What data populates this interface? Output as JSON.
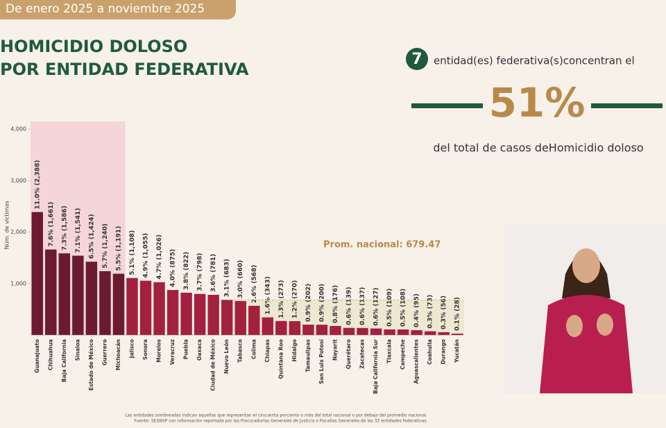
{
  "header": {
    "period": "De enero 2025 a noviembre 2025",
    "title_line1": "HOMICIDIO DOLOSO",
    "title_line2": "POR ENTIDAD FEDERATIVA"
  },
  "callout": {
    "count": "7",
    "lead": "entidad(es) federativa(s)concentran el",
    "share": "51%",
    "tail": "del total de casos deHomicidio doloso"
  },
  "notes": [
    "Las entidades sombreadas indican aquellas que representan el cincuenta porciento o más del total nacional o por debajo del promedio nacional.",
    "Fuente: SESNSP con información reportada por las Procuradurías Generales de Justicia o Fiscalías Generales de las 32 entidades federativas."
  ],
  "chart_data": {
    "type": "bar",
    "y_label": "Núm. de víctimas",
    "categories": [
      "Guanajuato",
      "Chihuahua",
      "Baja California",
      "Sinaloa",
      "Estado de México",
      "Guerrero",
      "Michoacán",
      "Jalisco",
      "Sonora",
      "Morelos",
      "Veracruz",
      "Puebla",
      "Oaxaca",
      "Ciudad de México",
      "Nuevo León",
      "Tabasco",
      "Colima",
      "Chiapas",
      "Quintana Roo",
      "Hidalgo",
      "Tamaulipas",
      "San Luis Potosí",
      "Nayarit",
      "Querétaro",
      "Zacatecas",
      "Baja California Sur",
      "Tlaxcala",
      "Campeche",
      "Aguascalientes",
      "Coahuila",
      "Durango",
      "Yucatán"
    ],
    "values": [
      2388,
      1661,
      1586,
      1541,
      1424,
      1240,
      1191,
      1108,
      1055,
      1026,
      875,
      822,
      798,
      781,
      683,
      660,
      568,
      343,
      273,
      270,
      202,
      200,
      176,
      139,
      137,
      127,
      109,
      108,
      95,
      73,
      56,
      28
    ],
    "value_labels": [
      "11.0% (2,388)",
      "7.6% (1,661)",
      "7.3% (1,586)",
      "7.1% (1,541)",
      "6.5% (1,424)",
      "5.7% (1,240)",
      "5.5% (1,191)",
      "5.1% (1,108)",
      "4.9% (1,055)",
      "4.7% (1,026)",
      "4.0% (875)",
      "3.8% (822)",
      "3.7% (798)",
      "3.6% (781)",
      "3.1% (683)",
      "3.0% (660)",
      "2.6% (568)",
      "1.6% (343)",
      "1.3% (273)",
      "1.2% (270)",
      "0.9% (202)",
      "0.9% (200)",
      "0.8% (176)",
      "0.6% (139)",
      "0.6% (137)",
      "0.6% (127)",
      "0.5% (109)",
      "0.5% (108)",
      "0.4% (95)",
      "0.3% (73)",
      "0.3% (56)",
      "0.1% (28)"
    ],
    "colors": [
      "#6b1a31",
      "#6b1a31",
      "#6b1a31",
      "#6b1a31",
      "#6b1a31",
      "#6b1a31",
      "#6b1a31",
      "#a3213f",
      "#a3213f",
      "#a3213f",
      "#a3213f",
      "#a3213f",
      "#a3213f",
      "#a3213f",
      "#a3213f",
      "#a3213f",
      "#a3213f",
      "#a3213f",
      "#a3213f",
      "#a3213f",
      "#a3213f",
      "#a3213f",
      "#a3213f",
      "#a3213f",
      "#a3213f",
      "#a3213f",
      "#a3213f",
      "#a3213f",
      "#a3213f",
      "#a3213f",
      "#a3213f",
      "#a3213f"
    ],
    "average": {
      "value": 679.47,
      "label": "Prom. nacional: 679.47"
    },
    "ylim": [
      0,
      4000
    ],
    "yticks": [
      {
        "value": 1000,
        "label": "1,000"
      },
      {
        "value": 2000,
        "label": "2,000"
      },
      {
        "value": 3000,
        "label": "3,000"
      },
      {
        "value": 4000,
        "label": "4,000"
      }
    ]
  }
}
